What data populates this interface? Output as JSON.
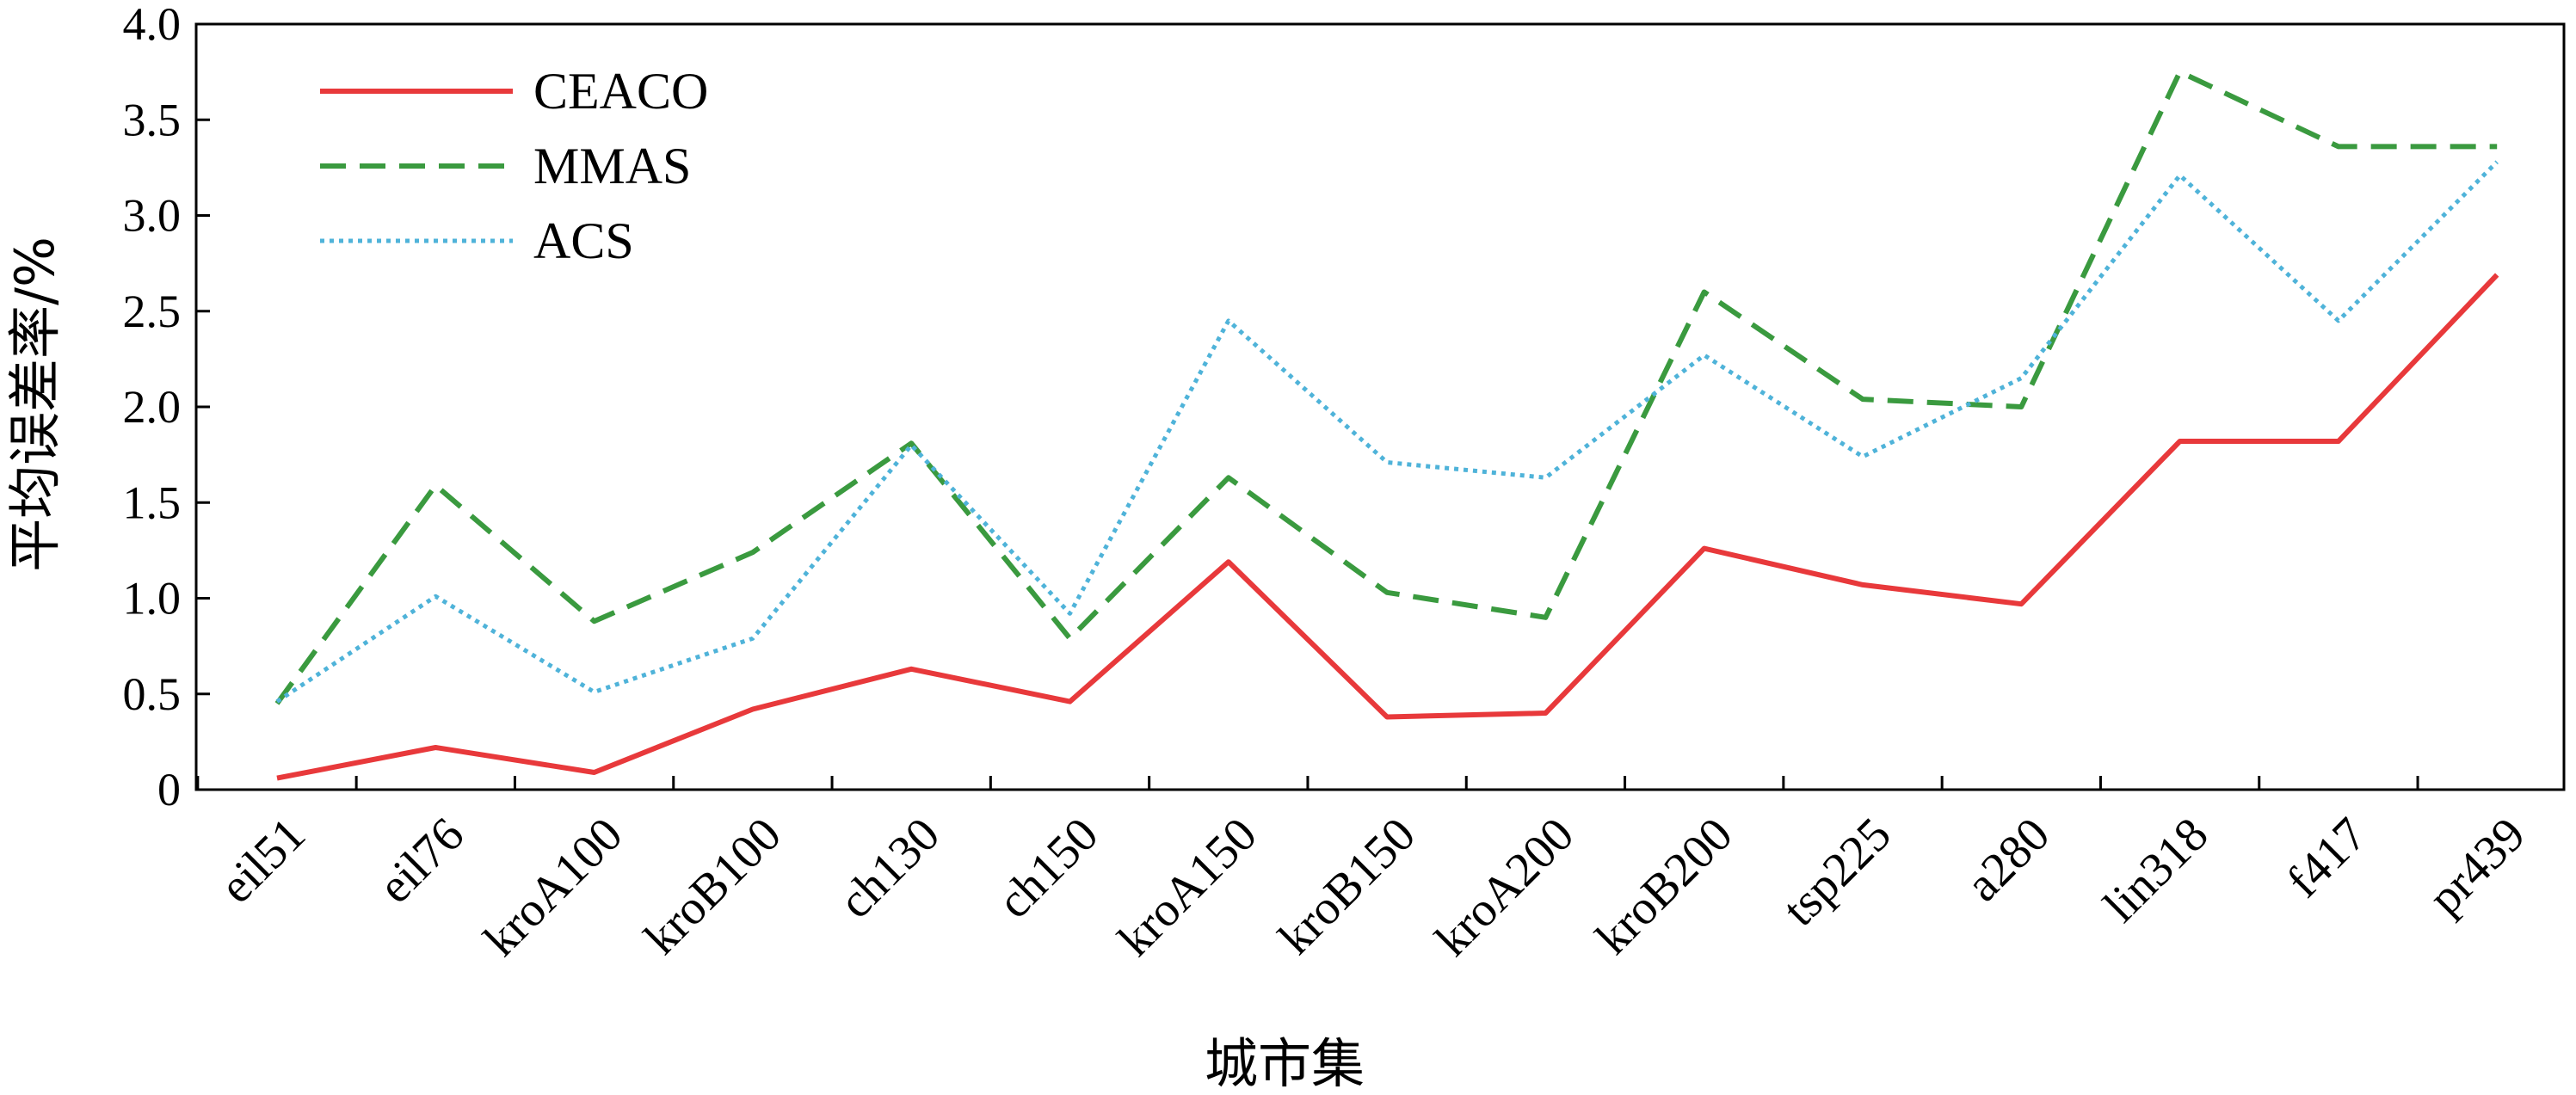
{
  "chart_data": {
    "type": "line",
    "xlabel": "城市集",
    "ylabel": "平均误差率/%",
    "categories": [
      "eil51",
      "eil76",
      "kroA100",
      "kroB100",
      "ch130",
      "ch150",
      "kroA150",
      "kroB150",
      "kroA200",
      "kroB200",
      "tsp225",
      "a280",
      "lin318",
      "f417",
      "pr439"
    ],
    "ylim": [
      0,
      4.0
    ],
    "yticks": [
      "0",
      "0.5",
      "1.0",
      "1.5",
      "2.0",
      "2.5",
      "3.0",
      "3.5",
      "4.0"
    ],
    "ytick_values": [
      0,
      0.5,
      1.0,
      1.5,
      2.0,
      2.5,
      3.0,
      3.5,
      4.0
    ],
    "legend_position": "top-left",
    "series": [
      {
        "name": "CEACO",
        "color": "#e8393b",
        "style": "solid",
        "values": [
          0.06,
          0.22,
          0.09,
          0.42,
          0.63,
          0.46,
          1.19,
          0.38,
          0.4,
          1.26,
          1.07,
          0.97,
          1.82,
          1.82,
          2.69
        ]
      },
      {
        "name": "MMAS",
        "color": "#3a9a3f",
        "style": "dashed",
        "values": [
          0.45,
          1.59,
          0.88,
          1.24,
          1.81,
          0.79,
          1.63,
          1.03,
          0.9,
          2.6,
          2.04,
          2.0,
          3.75,
          3.36,
          3.36
        ]
      },
      {
        "name": "ACS",
        "color": "#4fb3d9",
        "style": "dotted",
        "values": [
          0.46,
          1.01,
          0.51,
          0.79,
          1.8,
          0.92,
          2.45,
          1.71,
          1.63,
          2.27,
          1.74,
          2.15,
          3.21,
          2.45,
          3.28
        ]
      }
    ]
  }
}
